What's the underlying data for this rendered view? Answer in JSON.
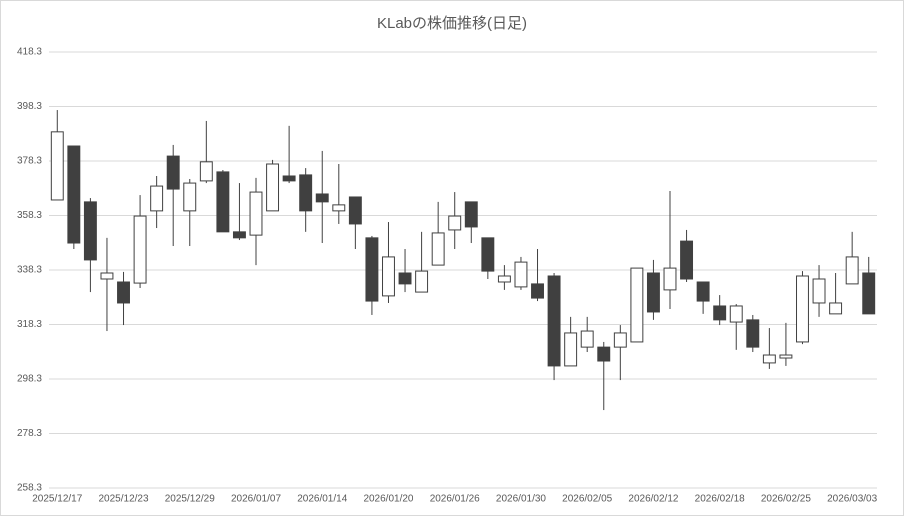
{
  "chart_data": {
    "type": "candlestick",
    "title": "KLabの株価推移(日足)",
    "categories": [
      "2025/12/17",
      null,
      null,
      null,
      "2025/12/23",
      null,
      null,
      null,
      "2025/12/29",
      null,
      null,
      null,
      "2026/01/07",
      null,
      null,
      null,
      "2026/01/14",
      null,
      null,
      null,
      "2026/01/20",
      null,
      null,
      null,
      "2026/01/26",
      null,
      null,
      null,
      "2026/01/30",
      null,
      null,
      null,
      "2026/02/05",
      null,
      null,
      null,
      "2026/02/12",
      null,
      null,
      null,
      "2026/02/18",
      null,
      null,
      null,
      "2026/02/25",
      null,
      null,
      null,
      "2026/03/03",
      null
    ],
    "open": [
      364.0,
      383.8,
      363.3,
      335.0,
      333.9,
      333.5,
      360.0,
      380.1,
      360.0,
      371.0,
      374.3,
      352.3,
      351.1,
      360.0,
      372.8,
      373.2,
      366.2,
      360.0,
      365.1,
      350.1,
      328.8,
      337.2,
      330.2,
      340.1,
      353.0,
      363.3,
      350.1,
      333.9,
      332.1,
      333.2,
      336.1,
      303.1,
      310.0,
      310.0,
      310.0,
      311.9,
      337.2,
      331.0,
      348.9,
      333.9,
      325.1,
      319.2,
      320.0,
      304.2,
      306.0,
      311.9,
      326.2,
      322.2,
      333.2,
      337.2
    ],
    "high": [
      397.0,
      383.8,
      364.7,
      350.1,
      337.6,
      365.8,
      372.8,
      384.2,
      371.7,
      393.0,
      375.0,
      370.2,
      372.1,
      378.7,
      391.2,
      375.7,
      382.0,
      377.2,
      365.1,
      350.8,
      355.9,
      346.0,
      352.3,
      363.3,
      366.9,
      363.3,
      350.1,
      340.1,
      343.1,
      346.0,
      337.2,
      321.1,
      321.1,
      311.9,
      318.1,
      339.0,
      342.0,
      367.3,
      353.0,
      333.9,
      329.1,
      325.8,
      321.8,
      317.0,
      318.9,
      337.9,
      340.1,
      337.2,
      352.3,
      343.1
    ],
    "low": [
      364.0,
      346.0,
      330.2,
      315.9,
      318.1,
      331.7,
      353.7,
      347.1,
      347.1,
      370.2,
      352.3,
      349.3,
      340.1,
      360.0,
      370.2,
      352.3,
      348.2,
      355.2,
      346.0,
      321.8,
      326.2,
      330.2,
      330.2,
      340.1,
      346.0,
      348.2,
      335.0,
      331.0,
      331.0,
      326.9,
      297.9,
      303.1,
      308.2,
      286.9,
      297.9,
      311.9,
      320.0,
      324.0,
      333.9,
      322.2,
      318.1,
      309.0,
      308.2,
      302.0,
      303.1,
      311.1,
      321.1,
      322.2,
      333.2,
      322.2
    ],
    "close": [
      389.0,
      348.2,
      342.0,
      337.2,
      326.2,
      358.1,
      369.1,
      368.0,
      370.2,
      378.0,
      352.3,
      350.1,
      366.9,
      377.2,
      371.0,
      360.0,
      363.3,
      362.2,
      355.2,
      326.9,
      343.1,
      333.2,
      337.9,
      351.9,
      358.1,
      354.1,
      337.9,
      336.1,
      341.2,
      328.0,
      303.1,
      315.2,
      315.9,
      304.9,
      315.2,
      339.0,
      322.9,
      339.0,
      335.0,
      326.9,
      320.0,
      325.1,
      310.0,
      307.1,
      307.1,
      336.1,
      335.0,
      326.2,
      343.1,
      322.2
    ],
    "up_color": "#ffffff",
    "down_color": "#404040",
    "ylim": [
      258.3,
      418.3
    ],
    "yticks": [
      258.3,
      278.3,
      298.3,
      318.3,
      338.3,
      358.3,
      378.3,
      398.3,
      418.3
    ],
    "grid": true
  }
}
